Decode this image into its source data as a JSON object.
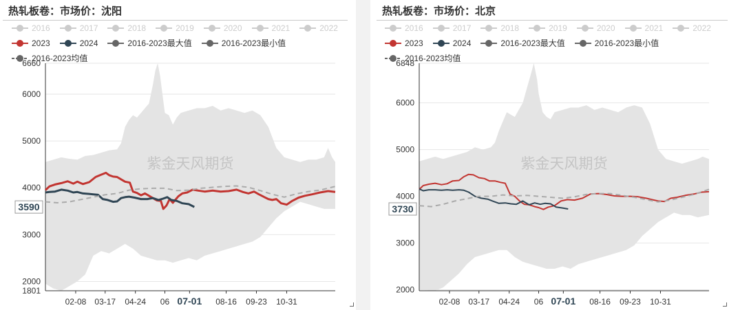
{
  "chart_data": [
    {
      "type": "line",
      "title": "热轧板卷：市场价：沈阳",
      "watermark": "紫金天风期货",
      "xlabel": "",
      "ylabel": "",
      "x_ticks": [
        "02-08",
        "03-17",
        "04-24",
        "06",
        "07-01",
        "08-16",
        "09-23",
        "10-31"
      ],
      "x_tick_days": [
        38,
        75,
        113,
        150,
        181,
        227,
        265,
        303
      ],
      "highlight_x_tick": "07-01",
      "ylim": [
        1801,
        6660
      ],
      "y_ticks": [
        1801,
        2000,
        3000,
        4000,
        5000,
        6000,
        6660
      ],
      "current_value_label": "3590",
      "grid": true,
      "legend_placement": "top",
      "series": [
        {
          "name": "2016",
          "active": false,
          "color": "#cccccc"
        },
        {
          "name": "2017",
          "active": false,
          "color": "#cccccc"
        },
        {
          "name": "2018",
          "active": false,
          "color": "#cccccc"
        },
        {
          "name": "2019",
          "active": false,
          "color": "#cccccc"
        },
        {
          "name": "2020",
          "active": false,
          "color": "#cccccc"
        },
        {
          "name": "2021",
          "active": false,
          "color": "#cccccc"
        },
        {
          "name": "2022",
          "active": false,
          "color": "#cccccc"
        },
        {
          "name": "2023",
          "active": true,
          "color": "#c23531",
          "x": [
            0,
            5,
            12,
            20,
            28,
            35,
            40,
            47,
            55,
            63,
            70,
            76,
            80,
            85,
            90,
            95,
            100,
            106,
            110,
            115,
            120,
            125,
            130,
            135,
            140,
            145,
            148,
            152,
            156,
            160,
            163,
            167,
            172,
            178,
            185,
            192,
            200,
            210,
            220,
            230,
            240,
            248,
            255,
            262,
            268,
            275,
            280,
            285,
            290,
            296,
            303,
            310,
            318,
            326,
            335,
            345,
            355,
            364
          ],
          "y": [
            3950,
            4030,
            4070,
            4100,
            4140,
            4090,
            4130,
            4080,
            4120,
            4230,
            4280,
            4320,
            4270,
            4240,
            4230,
            4180,
            4130,
            4110,
            3920,
            3890,
            3840,
            3880,
            3830,
            3780,
            3730,
            3720,
            3550,
            3620,
            3760,
            3680,
            3740,
            3820,
            3880,
            3900,
            3960,
            3940,
            3920,
            3940,
            3920,
            3930,
            3960,
            3910,
            3880,
            3920,
            3860,
            3800,
            3760,
            3740,
            3760,
            3670,
            3640,
            3720,
            3790,
            3830,
            3860,
            3900,
            3930,
            3910
          ]
        },
        {
          "name": "2024",
          "active": true,
          "color": "#2f4554",
          "x": [
            0,
            5,
            12,
            20,
            28,
            35,
            40,
            47,
            55,
            60,
            66,
            72,
            78,
            85,
            90,
            95,
            100,
            105,
            112,
            120,
            128,
            135,
            142,
            148,
            153,
            158,
            165,
            172,
            180,
            187
          ],
          "y": [
            3900,
            3910,
            3920,
            3960,
            3940,
            3900,
            3910,
            3880,
            3870,
            3860,
            3850,
            3760,
            3740,
            3700,
            3710,
            3780,
            3800,
            3810,
            3790,
            3760,
            3760,
            3780,
            3740,
            3770,
            3800,
            3740,
            3720,
            3670,
            3650,
            3590
          ]
        },
        {
          "name": "2016-2023最大值",
          "active": true,
          "color": "#e4e4e4",
          "show_in_plot": "band_top",
          "x": [
            0,
            10,
            20,
            30,
            40,
            50,
            60,
            70,
            80,
            90,
            95,
            100,
            105,
            110,
            115,
            120,
            125,
            130,
            135,
            138,
            141,
            144,
            147,
            150,
            155,
            160,
            165,
            170,
            180,
            190,
            200,
            210,
            220,
            230,
            240,
            250,
            260,
            270,
            280,
            290,
            300,
            310,
            320,
            330,
            340,
            350,
            355,
            360,
            364
          ],
          "y": [
            4550,
            4600,
            4650,
            4620,
            4600,
            4680,
            4700,
            4750,
            4800,
            4820,
            4950,
            5300,
            5450,
            5550,
            5500,
            5600,
            5700,
            5800,
            6200,
            6500,
            6660,
            6400,
            6000,
            5600,
            5550,
            5350,
            5500,
            5600,
            5650,
            5700,
            5700,
            5750,
            5650,
            5700,
            5650,
            5600,
            5650,
            5550,
            5300,
            4850,
            4650,
            4600,
            4550,
            4600,
            4600,
            4650,
            4850,
            4650,
            4550
          ]
        },
        {
          "name": "2016-2023最小值",
          "active": true,
          "color": "#e4e4e4",
          "show_in_plot": "band_bottom",
          "x": [
            0,
            10,
            20,
            30,
            40,
            50,
            60,
            70,
            80,
            90,
            100,
            110,
            120,
            130,
            140,
            150,
            160,
            170,
            180,
            190,
            200,
            210,
            220,
            230,
            240,
            250,
            260,
            270,
            280,
            290,
            300,
            310,
            320,
            330,
            340,
            350,
            364
          ],
          "y": [
            1950,
            1850,
            1801,
            1900,
            2000,
            2150,
            2550,
            2650,
            2600,
            2700,
            2800,
            2700,
            2550,
            2500,
            2450,
            2450,
            2400,
            2450,
            2500,
            2450,
            2550,
            2600,
            2650,
            2700,
            2750,
            2800,
            2850,
            2950,
            3150,
            3350,
            3500,
            3600,
            3700,
            3650,
            3600,
            3550,
            3550
          ]
        },
        {
          "name": "2016-2023均值",
          "active": true,
          "color": "#aaaaaa",
          "style": "dashed",
          "x": [
            0,
            15,
            30,
            45,
            60,
            75,
            90,
            105,
            120,
            135,
            150,
            165,
            180,
            195,
            210,
            225,
            240,
            255,
            270,
            285,
            300,
            315,
            330,
            345,
            364
          ],
          "y": [
            3700,
            3680,
            3700,
            3750,
            3800,
            3850,
            3880,
            3950,
            3980,
            3990,
            3990,
            3940,
            3950,
            3990,
            4010,
            4030,
            4040,
            4010,
            3940,
            3860,
            3800,
            3870,
            3920,
            3950,
            4030
          ]
        }
      ]
    },
    {
      "type": "line",
      "title": "热轧板卷：市场价：北京",
      "watermark": "紫金天风期货",
      "xlabel": "",
      "ylabel": "",
      "x_ticks": [
        "02-08",
        "03-17",
        "04-24",
        "06",
        "07-01",
        "08-16",
        "09-23",
        "10-31"
      ],
      "x_tick_days": [
        38,
        75,
        113,
        150,
        181,
        227,
        265,
        303
      ],
      "highlight_x_tick": "07-01",
      "ylim": [
        1980,
        6848
      ],
      "y_ticks": [
        2000,
        3000,
        4000,
        5000,
        6000,
        6848
      ],
      "current_value_label": "3730",
      "grid": true,
      "legend_placement": "top",
      "series": [
        {
          "name": "2016",
          "active": false,
          "color": "#cccccc"
        },
        {
          "name": "2017",
          "active": false,
          "color": "#cccccc"
        },
        {
          "name": "2018",
          "active": false,
          "color": "#cccccc"
        },
        {
          "name": "2019",
          "active": false,
          "color": "#cccccc"
        },
        {
          "name": "2020",
          "active": false,
          "color": "#cccccc"
        },
        {
          "name": "2021",
          "active": false,
          "color": "#cccccc"
        },
        {
          "name": "2022",
          "active": false,
          "color": "#cccccc"
        },
        {
          "name": "2023",
          "active": true,
          "color": "#c23531",
          "x": [
            0,
            5,
            12,
            20,
            28,
            35,
            42,
            50,
            56,
            62,
            68,
            75,
            82,
            88,
            95,
            102,
            108,
            114,
            120,
            126,
            132,
            138,
            145,
            150,
            156,
            162,
            170,
            178,
            186,
            195,
            205,
            215,
            225,
            235,
            245,
            255,
            265,
            275,
            285,
            295,
            300,
            308,
            316,
            324,
            334,
            345,
            355,
            364
          ],
          "y": [
            4150,
            4230,
            4260,
            4280,
            4250,
            4270,
            4330,
            4340,
            4420,
            4470,
            4460,
            4400,
            4380,
            4330,
            4330,
            4300,
            4280,
            4050,
            4000,
            3900,
            3830,
            3820,
            3780,
            3760,
            3720,
            3770,
            3800,
            3900,
            3930,
            3920,
            3960,
            4050,
            4060,
            4040,
            4010,
            4000,
            4000,
            3990,
            3960,
            3920,
            3900,
            3890,
            3960,
            3980,
            4020,
            4050,
            4090,
            4100
          ]
        },
        {
          "name": "2024",
          "active": true,
          "color": "#2f4554",
          "x": [
            0,
            5,
            12,
            20,
            28,
            35,
            42,
            50,
            56,
            62,
            70,
            78,
            86,
            92,
            100,
            108,
            115,
            122,
            130,
            138,
            145,
            152,
            158,
            165,
            172,
            180,
            187
          ],
          "y": [
            4160,
            4120,
            4140,
            4140,
            4130,
            4140,
            4130,
            4140,
            4130,
            4090,
            4000,
            3960,
            3940,
            3900,
            3850,
            3860,
            3840,
            3830,
            3900,
            3820,
            3860,
            3830,
            3850,
            3840,
            3770,
            3750,
            3730
          ]
        },
        {
          "name": "2016-2023最大值",
          "active": true,
          "color": "#e4e4e4",
          "show_in_plot": "band_top",
          "x": [
            0,
            10,
            20,
            30,
            40,
            50,
            60,
            70,
            80,
            90,
            95,
            100,
            105,
            110,
            115,
            120,
            125,
            130,
            135,
            140,
            144,
            148,
            150,
            155,
            160,
            165,
            170,
            180,
            190,
            200,
            210,
            220,
            230,
            240,
            250,
            260,
            270,
            280,
            290,
            300,
            310,
            320,
            330,
            340,
            350,
            356,
            364
          ],
          "y": [
            4750,
            4800,
            4850,
            4800,
            4850,
            4900,
            4950,
            5050,
            5000,
            5050,
            5150,
            5400,
            5600,
            5800,
            5750,
            5700,
            5850,
            6000,
            6300,
            6600,
            6848,
            6500,
            6200,
            5800,
            5700,
            5650,
            5800,
            5850,
            5900,
            5900,
            5950,
            5850,
            5900,
            5850,
            5800,
            5900,
            5950,
            5900,
            5550,
            5000,
            4800,
            4750,
            4700,
            4750,
            4800,
            4850,
            4800
          ]
        },
        {
          "name": "2016-2023最小值",
          "active": true,
          "color": "#e4e4e4",
          "show_in_plot": "band_bottom",
          "x": [
            0,
            10,
            20,
            30,
            40,
            50,
            60,
            70,
            80,
            90,
            100,
            110,
            120,
            130,
            140,
            150,
            160,
            170,
            180,
            190,
            200,
            210,
            220,
            230,
            240,
            250,
            260,
            270,
            280,
            290,
            300,
            310,
            320,
            330,
            340,
            350,
            364
          ],
          "y": [
            2000,
            1990,
            1980,
            2050,
            2200,
            2350,
            2550,
            2700,
            2750,
            2800,
            2850,
            2850,
            2700,
            2600,
            2550,
            2500,
            2450,
            2450,
            2500,
            2450,
            2550,
            2600,
            2650,
            2700,
            2750,
            2800,
            2850,
            2950,
            3150,
            3300,
            3450,
            3550,
            3650,
            3600,
            3600,
            3550,
            3600
          ]
        },
        {
          "name": "2016-2023均值",
          "active": true,
          "color": "#aaaaaa",
          "style": "dashed",
          "x": [
            0,
            15,
            30,
            45,
            60,
            75,
            90,
            105,
            120,
            135,
            150,
            165,
            180,
            195,
            210,
            225,
            240,
            255,
            270,
            285,
            300,
            315,
            330,
            345,
            364
          ],
          "y": [
            3800,
            3780,
            3830,
            3900,
            3950,
            4000,
            4000,
            4030,
            4010,
            4020,
            4000,
            3980,
            3960,
            3990,
            4040,
            4060,
            4060,
            4020,
            3980,
            3930,
            3880,
            3920,
            3980,
            4040,
            4150
          ]
        }
      ]
    }
  ]
}
